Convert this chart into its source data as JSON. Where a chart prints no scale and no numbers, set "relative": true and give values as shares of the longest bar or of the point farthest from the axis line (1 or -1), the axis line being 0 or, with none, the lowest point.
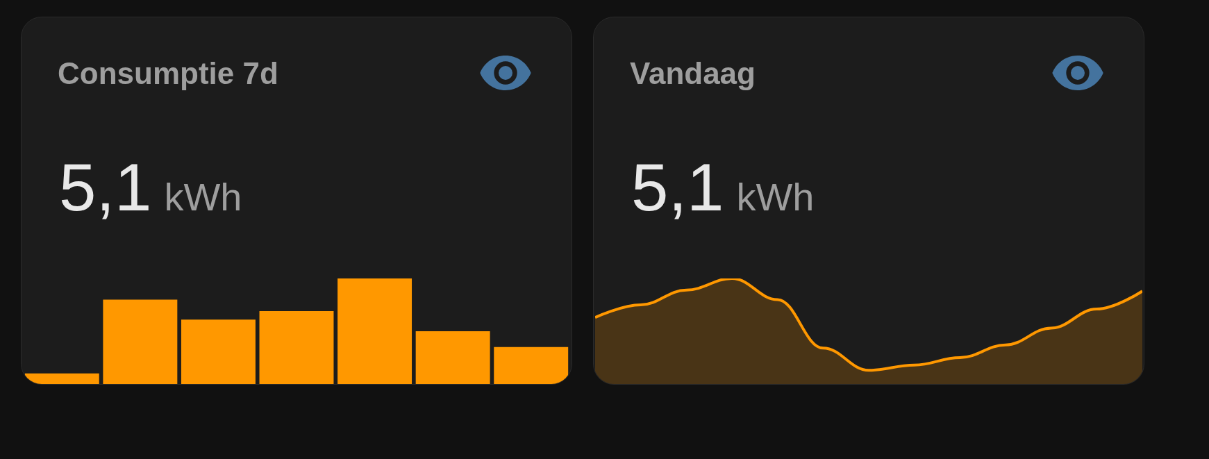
{
  "chart_data": [
    {
      "type": "bar",
      "title": "Consumptie 7d",
      "annotations": [
        "5,1",
        "kWh"
      ],
      "relative": true,
      "categories": [
        null,
        null,
        null,
        null,
        null,
        null,
        null
      ],
      "values": [
        0.1,
        0.8,
        0.61,
        0.69,
        1.0,
        0.5,
        0.35
      ],
      "color": "#ff9800"
    },
    {
      "type": "area",
      "title": "Vandaag",
      "annotations": [
        "5,1",
        "kWh"
      ],
      "relative": true,
      "categories": [
        null,
        null,
        null,
        null,
        null,
        null,
        null,
        null,
        null,
        null,
        null,
        null,
        null
      ],
      "values": [
        0.63,
        0.75,
        0.89,
        1.0,
        0.8,
        0.34,
        0.13,
        0.18,
        0.25,
        0.37,
        0.53,
        0.71,
        0.88
      ],
      "color": "#ff9800"
    }
  ]
}
